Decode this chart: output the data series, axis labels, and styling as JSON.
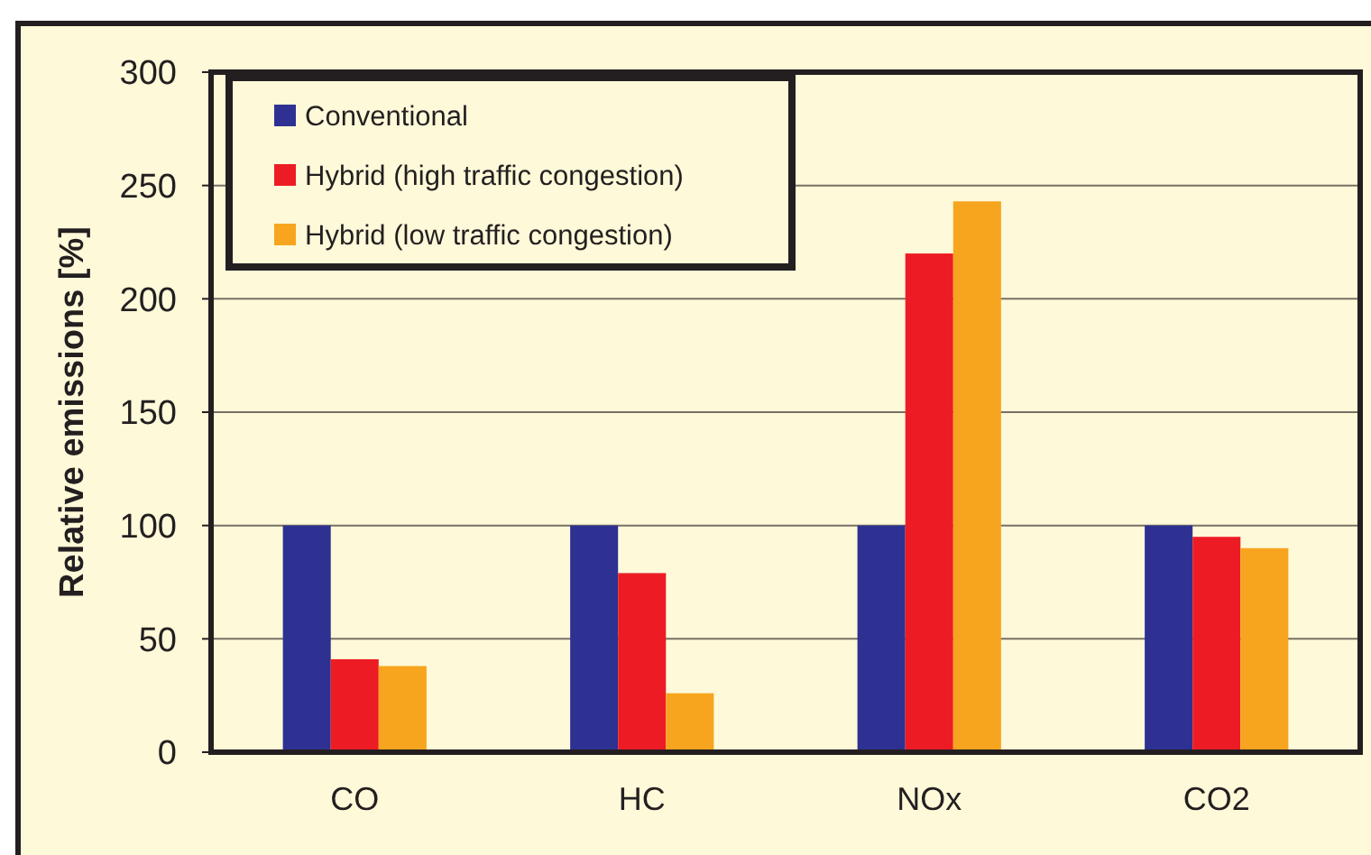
{
  "chart_data": {
    "type": "bar",
    "ylabel": "Relative emissions [%]",
    "categories": [
      "CO",
      "HC",
      "NOx",
      "CO2"
    ],
    "series": [
      {
        "name": "Conventional",
        "color": "#2e3192",
        "values": [
          100,
          100,
          100,
          100
        ]
      },
      {
        "name": "Hybrid (high traffic congestion)",
        "color": "#ed1c24",
        "values": [
          41,
          79,
          220,
          95
        ]
      },
      {
        "name": "Hybrid (low traffic congestion)",
        "color": "#f7a51e",
        "values": [
          38,
          26,
          243,
          90
        ]
      }
    ],
    "ylim": [
      0,
      300
    ],
    "yticks": [
      0,
      50,
      100,
      150,
      200,
      250,
      300
    ],
    "grid": "y",
    "legend": "top left"
  }
}
